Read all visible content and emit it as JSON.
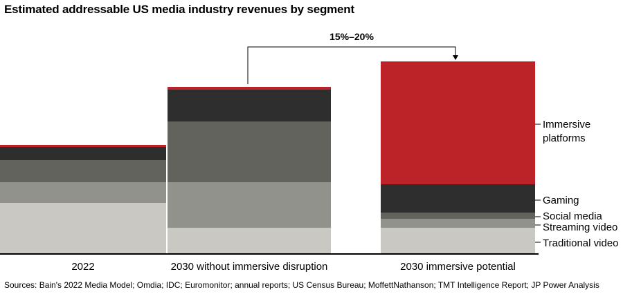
{
  "chart_data": {
    "type": "stacked-bar",
    "title": "Estimated addressable US media industry revenues by segment",
    "categories": [
      "2022",
      "2030 without immersive disruption",
      "2030 immersive potential"
    ],
    "series": [
      {
        "name": "Traditional video",
        "color": "#c9c8c3",
        "values": [
          73,
          37,
          37
        ]
      },
      {
        "name": "Streaming video",
        "color": "#92928c",
        "values": [
          30,
          66,
          13
        ]
      },
      {
        "name": "Social media",
        "color": "#63635e",
        "values": [
          32,
          88,
          9
        ]
      },
      {
        "name": "Gaming",
        "color": "#2e2e2e",
        "values": [
          19,
          46,
          41
        ]
      },
      {
        "name": "Immersive platforms",
        "color": "#bb2329",
        "values": [
          3,
          4,
          178
        ]
      }
    ],
    "segment_labels": [
      {
        "series": "Immersive platforms",
        "lines": [
          "Immersive",
          "platforms"
        ]
      },
      {
        "series": "Gaming",
        "lines": [
          "Gaming"
        ]
      },
      {
        "series": "Social media",
        "lines": [
          "Social media"
        ]
      },
      {
        "series": "Streaming video",
        "lines": [
          "Streaming video"
        ]
      },
      {
        "series": "Traditional video",
        "lines": [
          "Traditional video"
        ]
      }
    ],
    "annotation": {
      "text": "15%–20%",
      "from": "2030 without immersive disruption",
      "to": "2030 immersive potential"
    },
    "axis": {
      "y_range": [
        0,
        280
      ],
      "y_visible": false,
      "grid": false,
      "legend": "right-side labels"
    }
  },
  "source_note": "Sources: Bain's 2022 Media Model; Omdia; IDC; Euromonitor; annual reports; US Census Bureau; MoffettNathanson; TMT Intelligence Report; JP Power Analysis"
}
